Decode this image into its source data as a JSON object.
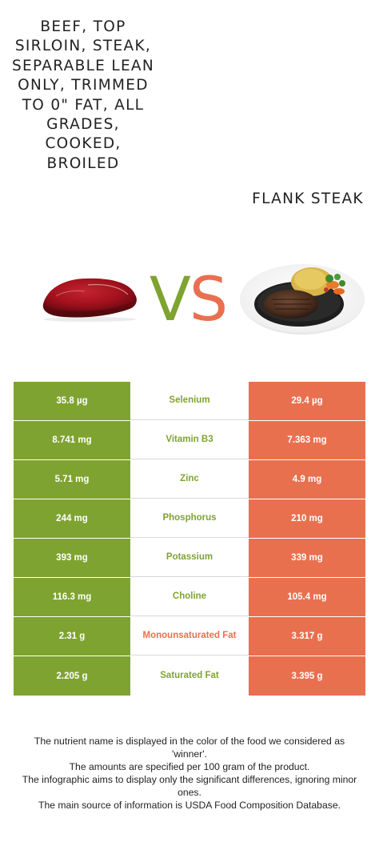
{
  "food_left": {
    "name": "Beef, top sirloin, steak, separable lean only, trimmed to 0\" fat, all grades, cooked, broiled",
    "color": "#7fa331",
    "icon": "raw-beef-steak-image"
  },
  "food_right": {
    "name": "Flank steak",
    "color": "#e9704f",
    "icon": "plated-steak-with-rice-image"
  },
  "vs": {
    "v": "V",
    "s": "S"
  },
  "rows": [
    {
      "nutrient": "Selenium",
      "left": "35.8 µg",
      "right": "29.4 µg",
      "winner": "left"
    },
    {
      "nutrient": "Vitamin B3",
      "left": "8.741 mg",
      "right": "7.363 mg",
      "winner": "left"
    },
    {
      "nutrient": "Zinc",
      "left": "5.71 mg",
      "right": "4.9 mg",
      "winner": "left"
    },
    {
      "nutrient": "Phosphorus",
      "left": "244 mg",
      "right": "210 mg",
      "winner": "left"
    },
    {
      "nutrient": "Potassium",
      "left": "393 mg",
      "right": "339 mg",
      "winner": "left"
    },
    {
      "nutrient": "Choline",
      "left": "116.3 mg",
      "right": "105.4 mg",
      "winner": "left"
    },
    {
      "nutrient": "Monounsaturated Fat",
      "left": "2.31 g",
      "right": "3.317 g",
      "winner": "right"
    },
    {
      "nutrient": "Saturated Fat",
      "left": "2.205 g",
      "right": "3.395 g",
      "winner": "left"
    }
  ],
  "footer": {
    "line1": "The nutrient name is displayed in the color of the food we considered as 'winner'.",
    "line2": "The amounts are specified per 100 gram of the product.",
    "line3": "The infographic aims to display only the significant differences, ignoring minor ones.",
    "line4": "The main source of information is USDA Food Composition Database."
  }
}
